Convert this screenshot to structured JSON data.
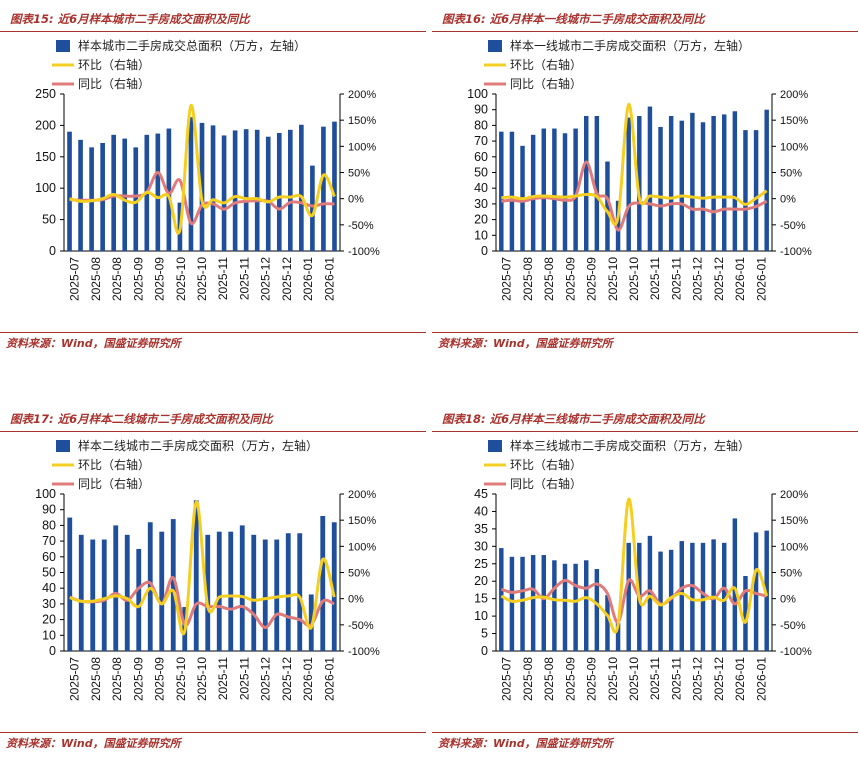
{
  "source_label": "资料来源：Wind，国盛证券研究所",
  "panels": [
    {
      "figure_label": "图表15:",
      "title": "近6月样本城市二手房成交面积及同比",
      "legend": [
        "样本城市二手房成交总面积（万方，左轴）",
        "环比（右轴）",
        "同比（右轴）"
      ],
      "colors": {
        "bar": "#1f4e9a",
        "mom": "#f4cf21",
        "yoy": "#e07b7b"
      },
      "chart_data": {
        "type": "bar",
        "title": "近6月样本城市二手房成交面积及同比",
        "left_axis": {
          "min": 0,
          "max": 250,
          "step": 50,
          "ticks": [
            "0",
            "50",
            "100",
            "150",
            "200",
            "250"
          ]
        },
        "right_axis": {
          "min": -100,
          "max": 200,
          "step": 50,
          "ticks": [
            "-100%",
            "-50%",
            "0%",
            "50%",
            "100%",
            "150%",
            "200%"
          ]
        },
        "x_labels": [
          "2025-07",
          "2025-08",
          "2025-08",
          "2025-09",
          "2025-09",
          "2025-10",
          "2025-10",
          "2025-11",
          "2025-11",
          "2025-12",
          "2025-12",
          "2026-01",
          "2026-01"
        ],
        "series": [
          {
            "name": "样本城市二手房成交总面积（万方，左轴）",
            "axis": "left",
            "kind": "bar",
            "values": [
              190,
              177,
              165,
              172,
              185,
              179,
              165,
              185,
              187,
              195,
              77,
              213,
              204,
              200,
              184,
              192,
              194,
              193,
              182,
              188,
              193,
              201,
              136,
              198,
              206
            ]
          },
          {
            "name": "环比（右轴）",
            "axis": "right",
            "kind": "line",
            "values": [
              0,
              -5,
              -4,
              0,
              8,
              -3,
              -7,
              12,
              2,
              4,
              -60,
              178,
              -4,
              -2,
              -8,
              4,
              0,
              0,
              -6,
              3,
              3,
              4,
              -32,
              45,
              4
            ]
          },
          {
            "name": "同比（右轴）",
            "axis": "right",
            "kind": "line",
            "values": [
              -2,
              -3,
              -3,
              -2,
              5,
              5,
              5,
              12,
              50,
              10,
              35,
              -47,
              -12,
              -10,
              -20,
              -8,
              -5,
              -4,
              -5,
              -20,
              -7,
              -8,
              -14,
              -10,
              -10
            ]
          }
        ]
      }
    },
    {
      "figure_label": "图表16:",
      "title": "近6月样本一线城市二手房成交面积及同比",
      "legend": [
        "样本一线城市二手房成交面积（万方，左轴）",
        "环比（右轴）",
        "同比（右轴）"
      ],
      "colors": {
        "bar": "#1f4e9a",
        "mom": "#f4cf21",
        "yoy": "#e07b7b"
      },
      "chart_data": {
        "type": "bar",
        "title": "近6月样本一线城市二手房成交面积及同比",
        "left_axis": {
          "min": 0,
          "max": 100,
          "step": 10,
          "ticks": [
            "0",
            "10",
            "20",
            "30",
            "40",
            "50",
            "60",
            "70",
            "80",
            "90",
            "100"
          ]
        },
        "right_axis": {
          "min": -100,
          "max": 200,
          "step": 50,
          "ticks": [
            "-100%",
            "-50%",
            "0%",
            "50%",
            "100%",
            "150%",
            "200%"
          ]
        },
        "x_labels": [
          "2025-07",
          "2025-08",
          "2025-08",
          "2025-09",
          "2025-09",
          "2025-10",
          "2025-10",
          "2025-11",
          "2025-11",
          "2025-12",
          "2025-12",
          "2026-01",
          "2026-01"
        ],
        "series": [
          {
            "name": "样本一线城市二手房成交面积（万方，左轴）",
            "axis": "left",
            "kind": "bar",
            "values": [
              76,
              76,
              67,
              74,
              78,
              78,
              75,
              78,
              86,
              86,
              57,
              32,
              85,
              86,
              92,
              79,
              86,
              83,
              88,
              82,
              86,
              87,
              89,
              77,
              77,
              90
            ]
          },
          {
            "name": "环比（右轴）",
            "axis": "right",
            "kind": "line",
            "values": [
              2,
              3,
              0,
              4,
              5,
              4,
              3,
              5,
              8,
              4,
              -25,
              -35,
              180,
              2,
              5,
              3,
              1,
              5,
              3,
              1,
              3,
              3,
              2,
              -11,
              1,
              15
            ]
          },
          {
            "name": "同比（右轴）",
            "axis": "right",
            "kind": "line",
            "values": [
              -5,
              -3,
              -5,
              0,
              2,
              0,
              -3,
              5,
              70,
              10,
              0,
              -60,
              -15,
              -8,
              -10,
              -14,
              -10,
              -10,
              -20,
              -20,
              -25,
              -20,
              -20,
              -20,
              -15,
              -5
            ]
          }
        ]
      }
    },
    {
      "figure_label": "图表17:",
      "title": "近6月样本二线城市二手房成交面积及同比",
      "legend": [
        "样本二线城市二手房成交面积（万方，左轴）",
        "环比（右轴）",
        "同比（右轴）"
      ],
      "colors": {
        "bar": "#1f4e9a",
        "mom": "#f4cf21",
        "yoy": "#e07b7b"
      },
      "chart_data": {
        "type": "bar",
        "title": "近6月样本二线城市二手房成交面积及同比",
        "left_axis": {
          "min": 0,
          "max": 100,
          "step": 10,
          "ticks": [
            "0",
            "10",
            "20",
            "30",
            "40",
            "50",
            "60",
            "70",
            "80",
            "90",
            "100"
          ]
        },
        "right_axis": {
          "min": -100,
          "max": 200,
          "step": 50,
          "ticks": [
            "-100%",
            "-50%",
            "0%",
            "50%",
            "100%",
            "150%",
            "200%"
          ]
        },
        "x_labels": [
          "2025-07",
          "2025-08",
          "2025-08",
          "2025-09",
          "2025-09",
          "2025-10",
          "2025-10",
          "2025-11",
          "2025-11",
          "2025-12",
          "2025-12",
          "2026-01",
          "2026-01"
        ],
        "series": [
          {
            "name": "样本二线城市二手房成交面积（万方，左轴）",
            "axis": "left",
            "kind": "bar",
            "values": [
              85,
              74,
              71,
              71,
              80,
              74,
              65,
              82,
              76,
              84,
              28,
              96,
              74,
              76,
              76,
              80,
              74,
              71,
              71,
              75,
              75,
              36,
              86,
              82
            ]
          },
          {
            "name": "环比（右轴）",
            "axis": "right",
            "kind": "line",
            "values": [
              2,
              -5,
              -5,
              0,
              5,
              0,
              -15,
              20,
              -10,
              15,
              -62,
              185,
              -15,
              3,
              5,
              4,
              -3,
              0,
              3,
              5,
              3,
              -55,
              75,
              3
            ]
          },
          {
            "name": "同比（右轴）",
            "axis": "right",
            "kind": "line",
            "values": [
              3,
              -5,
              -6,
              -3,
              10,
              -3,
              20,
              30,
              -10,
              40,
              -50,
              -10,
              -15,
              -15,
              -20,
              -15,
              -30,
              -55,
              -30,
              -35,
              -40,
              -50,
              -5,
              -10
            ]
          }
        ]
      }
    },
    {
      "figure_label": "图表18:",
      "title": "近6月样本三线城市二手房成交面积及同比",
      "legend": [
        "样本三线城市二手房成交面积（万方，左轴）",
        "环比（右轴）",
        "同比（右轴）"
      ],
      "colors": {
        "bar": "#1f4e9a",
        "mom": "#f4cf21",
        "yoy": "#e07b7b"
      },
      "chart_data": {
        "type": "bar",
        "title": "近6月样本三线城市二手房成交面积及同比",
        "left_axis": {
          "min": 0,
          "max": 45,
          "step": 5,
          "ticks": [
            "0",
            "5",
            "10",
            "15",
            "20",
            "25",
            "30",
            "35",
            "40",
            "45"
          ]
        },
        "right_axis": {
          "min": -100,
          "max": 200,
          "step": 50,
          "ticks": [
            "-100%",
            "-50%",
            "0%",
            "50%",
            "100%",
            "150%",
            "200%"
          ]
        },
        "x_labels": [
          "2025-07",
          "2025-08",
          "2025-08",
          "2025-09",
          "2025-09",
          "2025-10",
          "2025-10",
          "2025-11",
          "2025-11",
          "2025-12",
          "2025-12",
          "2026-01",
          "2026-01"
        ],
        "series": [
          {
            "name": "样本三线城市二手房成交面积（万方，左轴）",
            "axis": "left",
            "kind": "bar",
            "values": [
              29.5,
              27,
              27,
              27.5,
              27.5,
              26,
              25,
              25,
              26,
              23.5,
              16,
              8,
              31,
              31,
              33,
              28.5,
              29,
              31.5,
              31,
              31,
              32,
              31,
              38,
              21.5,
              34,
              34.5
            ]
          },
          {
            "name": "环比（右轴）",
            "axis": "right",
            "kind": "line",
            "values": [
              5,
              -5,
              -3,
              2,
              3,
              -2,
              -3,
              -5,
              2,
              -10,
              -32,
              -50,
              190,
              0,
              5,
              -12,
              2,
              10,
              -2,
              -2,
              3,
              -3,
              20,
              -45,
              55,
              5
            ]
          },
          {
            "name": "同比（右轴）",
            "axis": "right",
            "kind": "line",
            "values": [
              18,
              12,
              15,
              18,
              0,
              20,
              35,
              25,
              20,
              28,
              10,
              -45,
              35,
              5,
              15,
              -10,
              0,
              20,
              25,
              10,
              0,
              20,
              -10,
              15,
              10,
              5
            ]
          }
        ]
      }
    }
  ]
}
